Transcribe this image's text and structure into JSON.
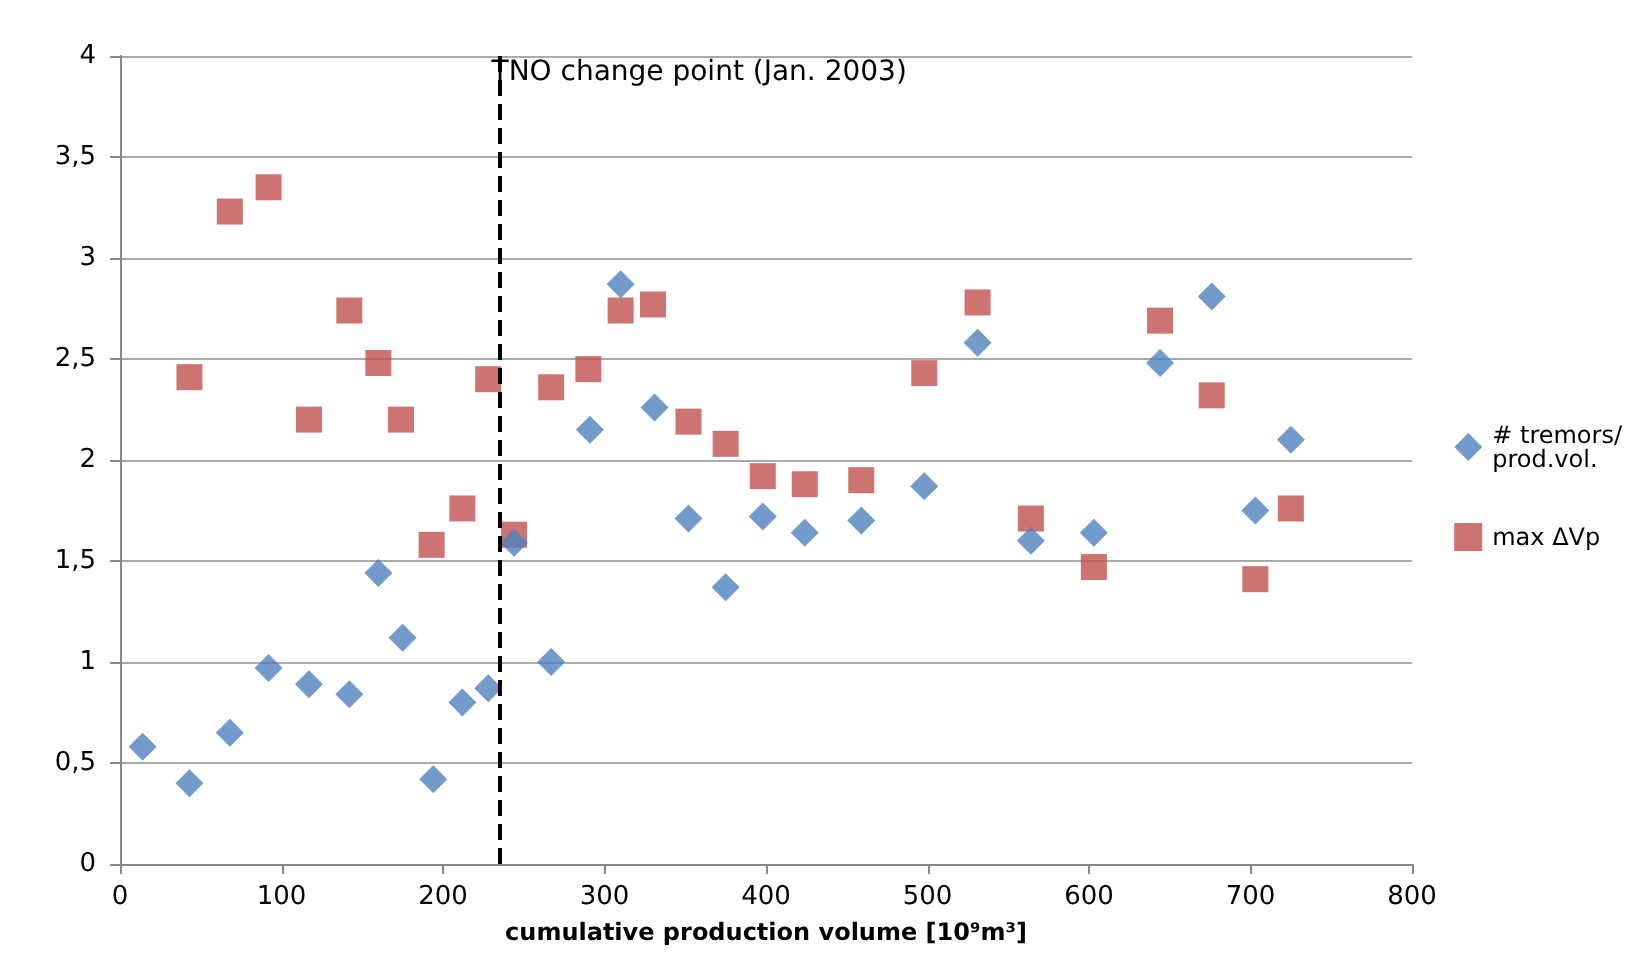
{
  "chart_data": {
    "type": "scatter",
    "xlabel": "cumulative production volume [10⁹m³]",
    "xlim": [
      0,
      800
    ],
    "xticks": [
      0,
      100,
      200,
      300,
      400,
      500,
      600,
      700,
      800
    ],
    "ylim": [
      0,
      4
    ],
    "yticks": [
      0,
      {
        "value": 0.5,
        "label": "0,5"
      },
      1,
      {
        "value": 1.5,
        "label": "1,5"
      },
      2,
      {
        "value": 2.5,
        "label": "2,5"
      },
      3,
      {
        "value": 3.5,
        "label": "3,5"
      },
      4
    ],
    "grid": "y",
    "legend": "right",
    "ref_lines": [
      {
        "axis": "x",
        "value": 235,
        "label": "TNO change point (Jan. 2003)",
        "color": "#000000",
        "line_style": "dashed"
      }
    ],
    "series": [
      {
        "name": "# tremors/\nprod.vol.",
        "color": "#4f81bd",
        "marker": "diamond",
        "x": [
          14,
          43,
          68,
          92,
          117,
          142,
          160,
          175,
          194,
          212,
          228,
          244,
          267,
          291,
          310,
          331,
          352,
          375,
          398,
          424,
          459,
          498,
          531,
          564,
          603,
          644,
          676,
          703,
          725
        ],
        "values": [
          0.58,
          0.4,
          0.65,
          0.97,
          0.89,
          0.84,
          1.44,
          1.12,
          0.42,
          0.8,
          0.87,
          1.59,
          1.0,
          2.15,
          2.87,
          2.26,
          1.71,
          1.37,
          1.72,
          1.64,
          1.7,
          1.87,
          2.58,
          1.6,
          1.64,
          2.48,
          2.81,
          1.75,
          2.1
        ]
      },
      {
        "name": "max ΔVp",
        "color": "#c0504d",
        "marker": "square",
        "x": [
          43,
          68,
          92,
          117,
          142,
          160,
          174,
          193,
          212,
          228,
          244,
          267,
          290,
          310,
          330,
          352,
          375,
          398,
          424,
          459,
          498,
          531,
          564,
          603,
          644,
          676,
          703,
          725
        ],
        "values": [
          2.41,
          3.23,
          3.35,
          2.2,
          2.74,
          2.48,
          2.2,
          1.58,
          1.76,
          2.4,
          1.63,
          2.36,
          2.45,
          2.74,
          2.77,
          2.19,
          2.08,
          1.92,
          1.88,
          1.9,
          2.43,
          2.78,
          1.71,
          1.47,
          2.69,
          2.32,
          1.41,
          1.76
        ]
      }
    ]
  }
}
